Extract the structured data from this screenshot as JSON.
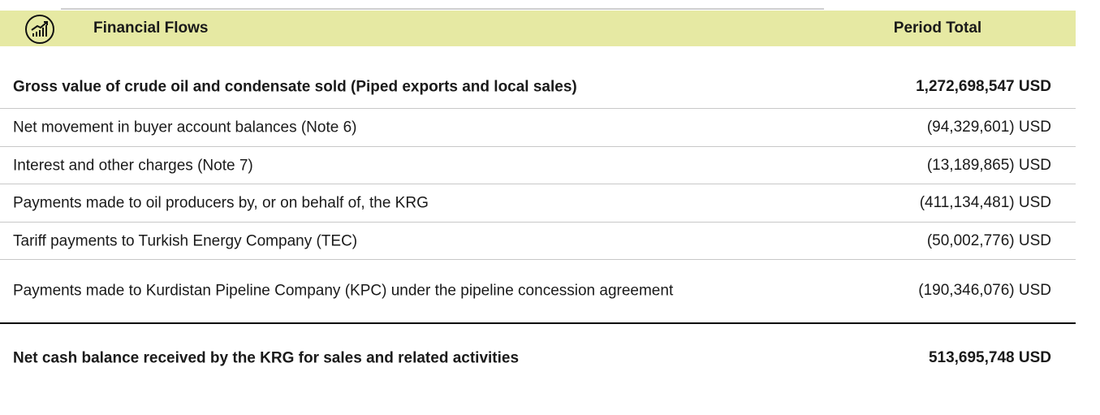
{
  "header": {
    "title": "Financial Flows",
    "column": "Period Total"
  },
  "table": {
    "rows": [
      {
        "label": "Gross value of crude oil and condensate sold (Piped exports and local sales)",
        "amount": "1,272,698,547 USD",
        "bold": true
      },
      {
        "label": "Net movement in buyer account balances (Note 6)",
        "amount": "(94,329,601) USD",
        "bold": false
      },
      {
        "label": "Interest and other charges (Note 7)",
        "amount": "(13,189,865) USD",
        "bold": false
      },
      {
        "label": "Payments made to oil producers by, or on behalf of, the KRG",
        "amount": "(411,134,481) USD",
        "bold": false
      },
      {
        "label": "Tariff payments to Turkish Energy Company (TEC)",
        "amount": "(50,002,776) USD",
        "bold": false
      },
      {
        "label": "Payments made to Kurdistan Pipeline Company (KPC) under the pipeline concession agreement",
        "amount": "(190,346,076) USD",
        "bold": false
      },
      {
        "label": "Net cash balance received by the KRG for sales and related activities",
        "amount": "513,695,748 USD",
        "bold": true
      }
    ]
  }
}
